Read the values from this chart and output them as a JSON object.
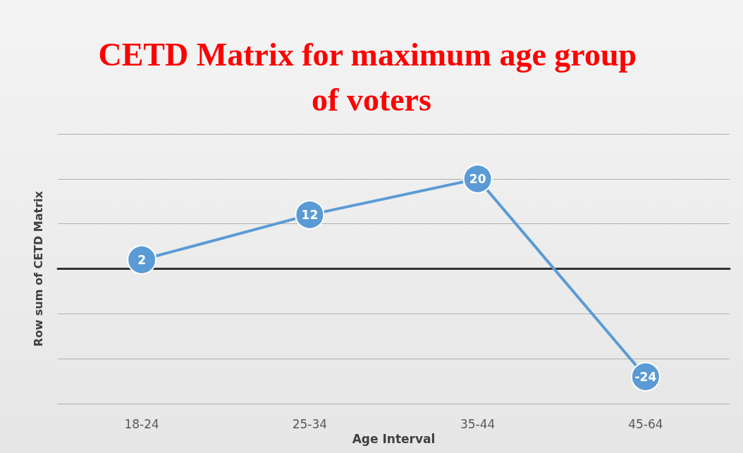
{
  "chart_data": {
    "type": "line",
    "title": "CETD Matrix for maximum age group of voters",
    "xlabel": "Age Interval",
    "ylabel": "Row sum of CETD Matrix",
    "categories": [
      "18-24",
      "25-34",
      "35-44",
      "45-64"
    ],
    "series": [
      {
        "color": "#5b9bd5",
        "values": [
          2,
          12,
          20,
          -24
        ]
      }
    ],
    "ylim": [
      -30,
      30
    ],
    "yticks": [
      {
        "value": -30,
        "label": null
      },
      {
        "value": -20,
        "label": null
      },
      {
        "value": -10,
        "label": null
      },
      {
        "value": 0,
        "label": null
      },
      {
        "value": 10,
        "label": null
      },
      {
        "value": 20,
        "label": null
      },
      {
        "value": 30,
        "label": null
      }
    ],
    "grid": "y",
    "tick_labels": "x",
    "data_labels": true,
    "marker": "circle",
    "line_style": "solid"
  }
}
